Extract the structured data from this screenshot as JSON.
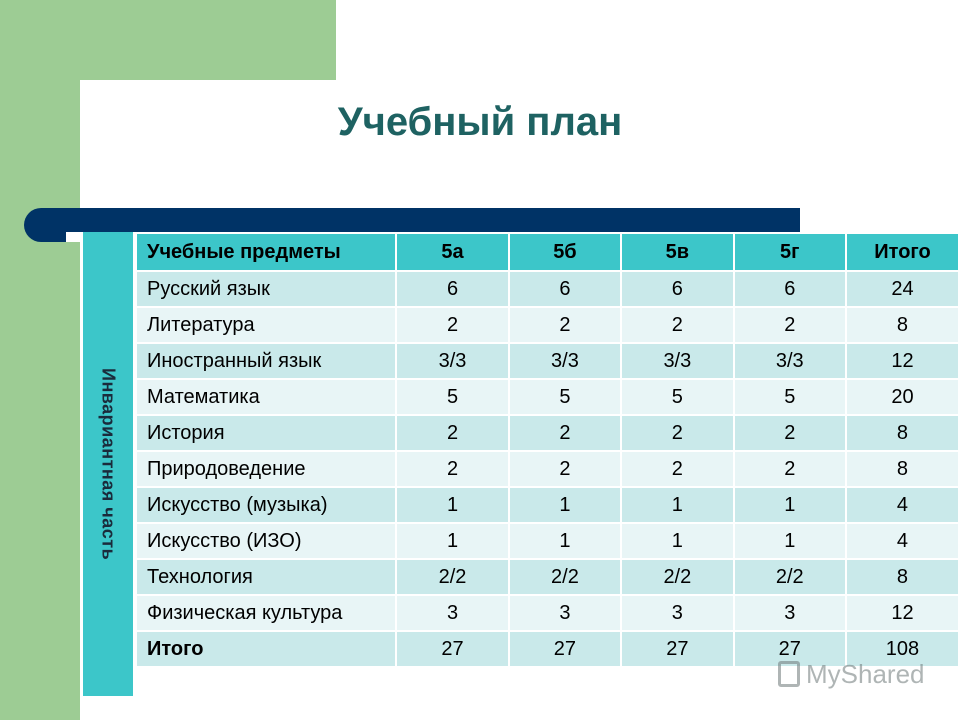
{
  "title": "Учебный план",
  "side_label": "Инвариантная часть",
  "table": {
    "headers": [
      "Учебные предметы",
      "5а",
      "5б",
      "5в",
      "5г",
      "Итого"
    ],
    "rows": [
      [
        "Русский язык",
        "6",
        "6",
        "6",
        "6",
        "24"
      ],
      [
        "Литература",
        "2",
        "2",
        "2",
        "2",
        "8"
      ],
      [
        "Иностранный язык",
        "3/3",
        "3/3",
        "3/3",
        "3/3",
        "12"
      ],
      [
        "Математика",
        "5",
        "5",
        "5",
        "5",
        "20"
      ],
      [
        "История",
        "2",
        "2",
        "2",
        "2",
        "8"
      ],
      [
        "Природоведение",
        "2",
        "2",
        "2",
        "2",
        "8"
      ],
      [
        "Искусство (музыка)",
        "1",
        "1",
        "1",
        "1",
        "4"
      ],
      [
        "Искусство (ИЗО)",
        "1",
        "1",
        "1",
        "1",
        "4"
      ],
      [
        "Технология",
        "2/2",
        "2/2",
        "2/2",
        "2/2",
        "8"
      ],
      [
        "Физическая культура",
        "3",
        "3",
        "3",
        "3",
        "12"
      ],
      [
        "Итого",
        "27",
        "27",
        "27",
        "27",
        "108"
      ]
    ]
  },
  "watermark": "MyShared",
  "colors": {
    "accent_green": "#9dcc94",
    "navy": "#003366",
    "header_teal": "#3cc6c9",
    "row_light": "#e8f5f6",
    "row_mid": "#c9e9ea",
    "title_color": "#1e6262"
  }
}
